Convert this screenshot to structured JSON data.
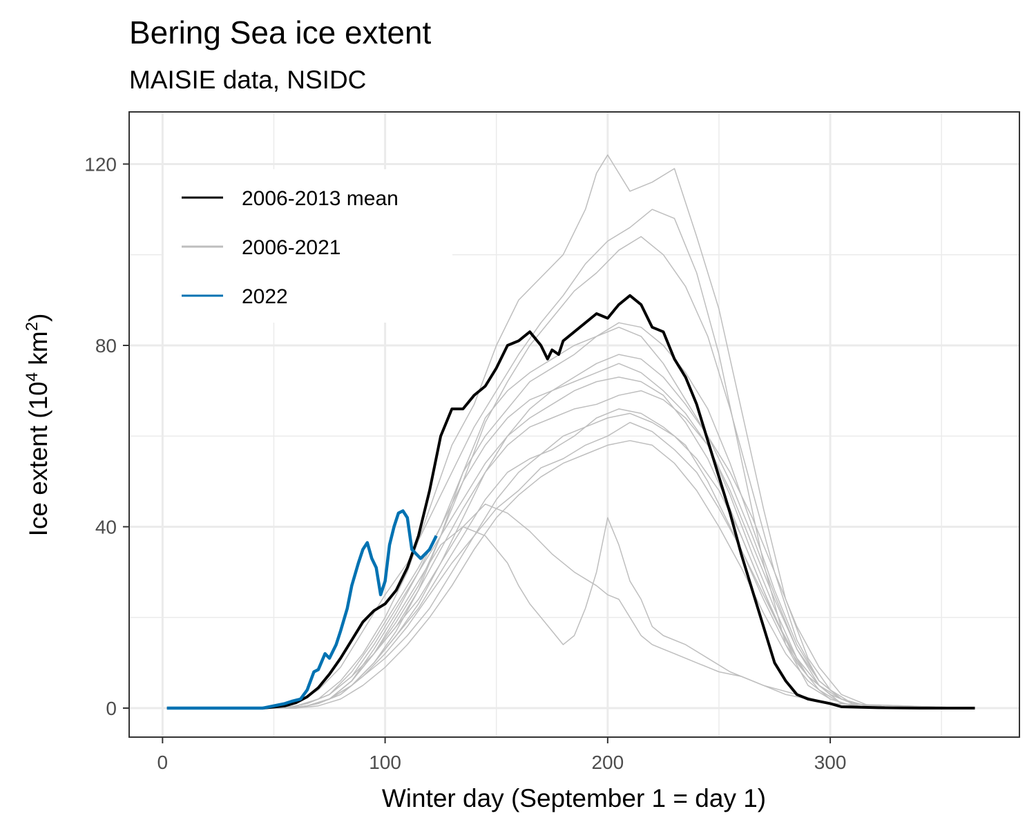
{
  "chart_data": {
    "type": "line",
    "title": "Bering Sea ice extent",
    "subtitle": "MAISIE data, NSIDC",
    "xlabel": "Winter day (September 1 = day 1)",
    "ylabel": "Ice extent (10",
    "ylabel_sup1": "4",
    "ylabel_mid": " km",
    "ylabel_sup2": "2",
    "ylabel_end": ")",
    "xlim": [
      -15,
      385
    ],
    "ylim": [
      -6.4,
      131.5
    ],
    "xticks": [
      0,
      100,
      200,
      300
    ],
    "yticks": [
      0,
      40,
      80,
      120
    ],
    "legend_position": "top-left",
    "legend": [
      {
        "label": "2006-2013 mean",
        "color": "#000000"
      },
      {
        "label": "2006-2021",
        "color": "#bebebe"
      },
      {
        "label": "2022",
        "color": "#0072b2"
      }
    ],
    "series": [
      {
        "name": "2006-2013 mean",
        "color": "#000000",
        "x": [
          2,
          45,
          55,
          60,
          65,
          70,
          75,
          80,
          85,
          90,
          95,
          100,
          105,
          110,
          115,
          120,
          125,
          130,
          135,
          140,
          145,
          150,
          155,
          160,
          165,
          170,
          173,
          175,
          178,
          180,
          185,
          190,
          195,
          200,
          205,
          210,
          215,
          220,
          225,
          230,
          235,
          240,
          245,
          250,
          255,
          260,
          265,
          270,
          275,
          280,
          285,
          290,
          295,
          300,
          305,
          320,
          340,
          365
        ],
        "values": [
          0,
          0,
          0.5,
          1.2,
          2.5,
          4.5,
          7.5,
          11,
          15,
          19,
          21.5,
          23,
          26,
          31,
          38,
          48,
          60,
          66,
          66,
          69,
          71,
          75,
          80,
          81,
          83,
          80,
          77,
          79,
          78,
          81,
          83,
          85,
          87,
          86,
          89,
          91,
          89,
          84,
          83,
          77,
          73,
          67,
          59,
          51,
          43,
          34,
          26,
          18,
          10,
          6,
          3,
          2,
          1.5,
          1,
          0.3,
          0.1,
          0,
          0
        ]
      },
      {
        "name": "2022",
        "color": "#0072b2",
        "x": [
          2,
          45,
          55,
          58,
          62,
          65,
          68,
          70,
          73,
          75,
          78,
          80,
          83,
          85,
          88,
          90,
          92,
          94,
          96,
          98,
          100,
          102,
          104,
          106,
          108,
          110,
          112,
          114,
          116,
          118,
          120,
          123
        ],
        "values": [
          0,
          0,
          1,
          1.5,
          2,
          4,
          8,
          8.5,
          12,
          11,
          14,
          17,
          22,
          27,
          32,
          35,
          36.5,
          33,
          31,
          25,
          28,
          36,
          40,
          43,
          43.5,
          42,
          35,
          34,
          33,
          34,
          35,
          38
        ]
      },
      {
        "name": "2006-2021",
        "color": "#bebebe",
        "x": [
          2,
          50,
          60,
          70,
          80,
          90,
          100,
          110,
          120,
          130,
          140,
          150,
          160,
          170,
          180,
          190,
          200,
          210,
          220,
          230,
          240,
          250,
          260,
          270,
          280,
          290,
          300,
          310,
          330,
          365
        ],
        "values": [
          0,
          0,
          1,
          4,
          9,
          17,
          25,
          32,
          42,
          52,
          62,
          70,
          78,
          85,
          91,
          98,
          103,
          106,
          110,
          108,
          96,
          78,
          55,
          32,
          14,
          5,
          2,
          0.5,
          0,
          0
        ]
      },
      {
        "name": "2006-2021",
        "color": "#bebebe",
        "x": [
          2,
          55,
          65,
          75,
          85,
          95,
          105,
          115,
          125,
          135,
          145,
          155,
          165,
          175,
          185,
          195,
          205,
          215,
          225,
          235,
          245,
          255,
          265,
          275,
          285,
          295,
          305,
          320,
          365
        ],
        "values": [
          0,
          0,
          1,
          3,
          7,
          12,
          19,
          27,
          38,
          50,
          63,
          72,
          80,
          86,
          92,
          96,
          101,
          104,
          100,
          93,
          82,
          66,
          48,
          30,
          15,
          6,
          2,
          0,
          0
        ]
      },
      {
        "name": "2006-2021",
        "color": "#bebebe",
        "x": [
          2,
          50,
          60,
          70,
          80,
          90,
          100,
          110,
          120,
          130,
          140,
          150,
          160,
          170,
          180,
          190,
          195,
          200,
          210,
          220,
          230,
          240,
          250,
          260,
          270,
          280,
          290,
          300,
          310,
          330,
          365
        ],
        "values": [
          0,
          0,
          0.5,
          2,
          6,
          12,
          20,
          30,
          44,
          58,
          67,
          80,
          90,
          95,
          100,
          110,
          118,
          122,
          114,
          116,
          119,
          104,
          88,
          66,
          44,
          24,
          11,
          4,
          1,
          0,
          0
        ]
      },
      {
        "name": "2006-2021",
        "color": "#bebebe",
        "x": [
          2,
          55,
          65,
          75,
          85,
          95,
          105,
          115,
          125,
          135,
          145,
          155,
          165,
          175,
          185,
          195,
          205,
          215,
          225,
          235,
          245,
          255,
          265,
          275,
          285,
          295,
          305,
          320,
          365
        ],
        "values": [
          0,
          0,
          0.5,
          2,
          5,
          10,
          17,
          26,
          38,
          52,
          64,
          70,
          74,
          77,
          80,
          82,
          85,
          84,
          80,
          74,
          66,
          54,
          40,
          26,
          14,
          6,
          2,
          0,
          0
        ]
      },
      {
        "name": "2006-2021",
        "color": "#bebebe",
        "x": [
          2,
          55,
          65,
          75,
          85,
          95,
          105,
          115,
          125,
          135,
          145,
          155,
          165,
          175,
          185,
          195,
          205,
          215,
          225,
          235,
          245,
          255,
          265,
          275,
          285,
          295,
          305,
          320,
          365
        ],
        "values": [
          0,
          0,
          0.5,
          2,
          6,
          12,
          18,
          26,
          35,
          44,
          52,
          58,
          62,
          64,
          66,
          67,
          69,
          70,
          68,
          64,
          58,
          48,
          36,
          24,
          13,
          6,
          2,
          0,
          0
        ]
      },
      {
        "name": "2006-2021",
        "color": "#bebebe",
        "x": [
          2,
          55,
          65,
          75,
          85,
          95,
          105,
          115,
          125,
          135,
          145,
          155,
          160,
          165,
          170,
          175,
          180,
          185,
          190,
          195,
          200,
          205,
          210,
          215,
          220,
          225,
          235,
          245,
          255,
          265,
          280,
          300,
          365
        ],
        "values": [
          0,
          0,
          0.5,
          2,
          6,
          12,
          20,
          28,
          36,
          40,
          38,
          32,
          27,
          23,
          20,
          17,
          14,
          16,
          22,
          30,
          42,
          36,
          28,
          24,
          18,
          16,
          14,
          11,
          8,
          6,
          3,
          1,
          0
        ]
      },
      {
        "name": "2006-2021",
        "color": "#bebebe",
        "x": [
          2,
          55,
          65,
          75,
          85,
          95,
          105,
          115,
          125,
          135,
          145,
          155,
          165,
          175,
          185,
          195,
          205,
          215,
          225,
          235,
          245,
          255,
          265,
          275,
          285,
          295,
          305,
          320,
          365
        ],
        "values": [
          0,
          0,
          1,
          3,
          8,
          15,
          23,
          31,
          40,
          50,
          58,
          64,
          68,
          70,
          72,
          74,
          76,
          74,
          70,
          65,
          58,
          47,
          34,
          22,
          11,
          5,
          1,
          0,
          0
        ]
      },
      {
        "name": "2006-2021",
        "color": "#bebebe",
        "x": [
          2,
          60,
          70,
          80,
          90,
          100,
          110,
          120,
          130,
          140,
          150,
          160,
          170,
          180,
          190,
          200,
          210,
          220,
          230,
          240,
          250,
          260,
          270,
          280,
          290,
          300,
          310,
          330,
          365
        ],
        "values": [
          0,
          0,
          1,
          3,
          7,
          12,
          18,
          25,
          32,
          38,
          44,
          48,
          53,
          55,
          58,
          60,
          63,
          61,
          57,
          52,
          44,
          35,
          24,
          14,
          7,
          3,
          1,
          0,
          0
        ]
      },
      {
        "name": "2006-2021",
        "color": "#bebebe",
        "x": [
          2,
          55,
          65,
          75,
          85,
          95,
          105,
          115,
          125,
          135,
          145,
          155,
          165,
          175,
          185,
          195,
          205,
          215,
          225,
          235,
          245,
          255,
          265,
          275,
          285,
          295,
          305,
          320,
          365
        ],
        "values": [
          0,
          0,
          0.5,
          2,
          5,
          10,
          16,
          22,
          30,
          38,
          46,
          52,
          55,
          57,
          60,
          64,
          66,
          65,
          62,
          58,
          50,
          40,
          30,
          20,
          11,
          5,
          2,
          0,
          0
        ]
      },
      {
        "name": "2006-2021",
        "color": "#bebebe",
        "x": [
          2,
          55,
          65,
          75,
          85,
          95,
          105,
          115,
          125,
          135,
          145,
          155,
          165,
          175,
          185,
          195,
          205,
          215,
          225,
          235,
          245,
          255,
          265,
          275,
          285,
          295,
          305,
          320,
          365
        ],
        "values": [
          0,
          0,
          1,
          3,
          7,
          14,
          22,
          30,
          38,
          46,
          54,
          60,
          64,
          67,
          70,
          72,
          73,
          72,
          69,
          63,
          55,
          44,
          32,
          20,
          10,
          4,
          1,
          0,
          0
        ]
      },
      {
        "name": "2006-2021",
        "color": "#bebebe",
        "x": [
          2,
          60,
          70,
          80,
          90,
          100,
          110,
          120,
          130,
          140,
          150,
          160,
          170,
          180,
          190,
          200,
          210,
          220,
          230,
          240,
          250,
          260,
          270,
          280,
          290,
          300,
          310,
          330,
          365
        ],
        "values": [
          0,
          0,
          0.5,
          2,
          5,
          9,
          14,
          20,
          27,
          35,
          42,
          47,
          51,
          54,
          56,
          58,
          59,
          58,
          54,
          48,
          40,
          31,
          21,
          12,
          6,
          2,
          0.5,
          0,
          0
        ]
      },
      {
        "name": "2006-2021",
        "color": "#bebebe",
        "x": [
          2,
          55,
          65,
          75,
          85,
          95,
          105,
          115,
          125,
          135,
          145,
          155,
          165,
          175,
          185,
          195,
          200,
          205,
          210,
          215,
          220,
          225,
          230,
          240,
          250,
          260,
          270,
          285,
          300,
          365
        ],
        "values": [
          0,
          0,
          0.5,
          2,
          6,
          12,
          18,
          24,
          32,
          40,
          45,
          43,
          39,
          34,
          30,
          27,
          25,
          24,
          20,
          16,
          14,
          13,
          12,
          10,
          8,
          7,
          5,
          3,
          1,
          0
        ]
      },
      {
        "name": "2006-2021",
        "color": "#bebebe",
        "x": [
          2,
          55,
          65,
          75,
          85,
          95,
          105,
          115,
          125,
          135,
          145,
          155,
          165,
          175,
          185,
          195,
          205,
          215,
          225,
          235,
          245,
          255,
          265,
          275,
          285,
          295,
          305,
          320,
          365
        ],
        "values": [
          0,
          0,
          0.5,
          2,
          6,
          13,
          21,
          30,
          40,
          52,
          60,
          66,
          72,
          75,
          78,
          82,
          84,
          82,
          76,
          68,
          60,
          50,
          38,
          25,
          13,
          5,
          1,
          0,
          0
        ]
      },
      {
        "name": "2006-2021",
        "color": "#bebebe",
        "x": [
          2,
          55,
          65,
          75,
          85,
          95,
          105,
          115,
          125,
          135,
          145,
          155,
          165,
          175,
          185,
          195,
          205,
          215,
          225,
          235,
          245,
          255,
          265,
          275,
          285,
          295,
          305,
          320,
          365
        ],
        "values": [
          0,
          0,
          0.5,
          2,
          5,
          10,
          16,
          23,
          32,
          42,
          52,
          60,
          66,
          70,
          73,
          76,
          78,
          77,
          73,
          67,
          60,
          52,
          42,
          30,
          18,
          9,
          3,
          0,
          0
        ]
      },
      {
        "name": "2006-2021",
        "color": "#bebebe",
        "x": [
          2,
          60,
          70,
          80,
          90,
          100,
          110,
          120,
          130,
          140,
          150,
          160,
          170,
          180,
          190,
          200,
          210,
          220,
          230,
          240,
          250,
          260,
          270,
          280,
          290,
          300,
          310,
          330,
          365
        ],
        "values": [
          0,
          0,
          1,
          3,
          7,
          11,
          16,
          22,
          30,
          38,
          46,
          52,
          56,
          60,
          62,
          64,
          65,
          63,
          60,
          55,
          48,
          38,
          26,
          15,
          7,
          3,
          1,
          0,
          0
        ]
      }
    ]
  }
}
